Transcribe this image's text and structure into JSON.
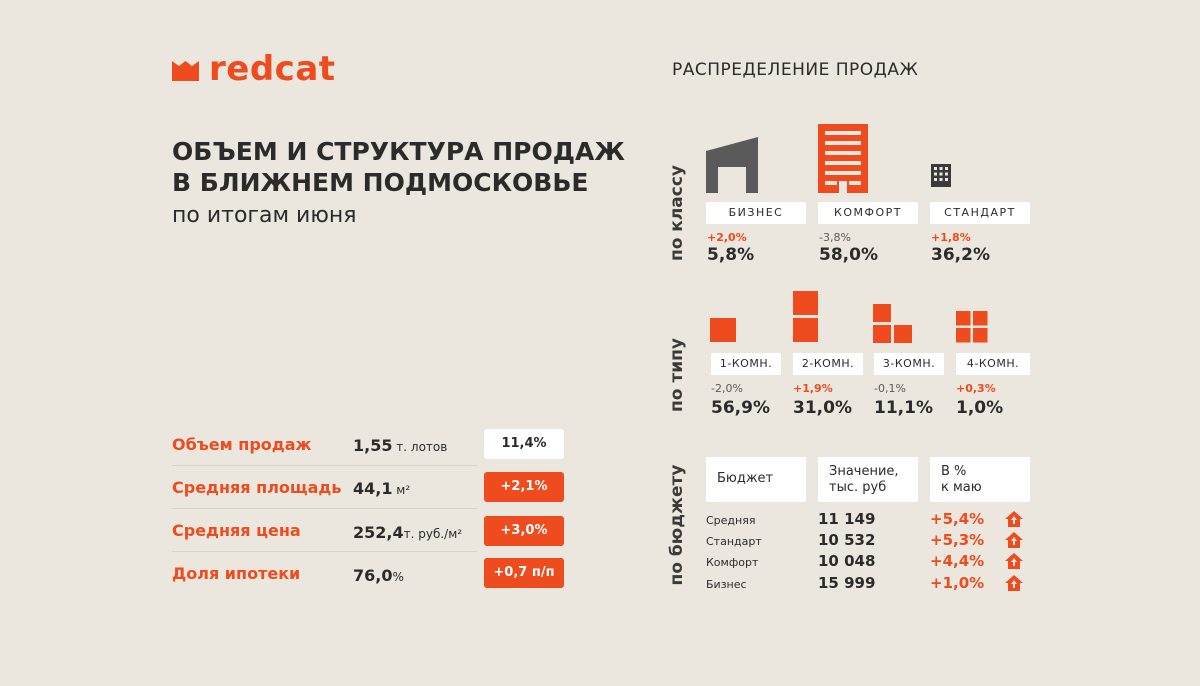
{
  "logo": {
    "text": "redcat"
  },
  "title": {
    "line1": "ОБЪЕМ И СТРУКТУРА ПРОДАЖ",
    "line2": "В БЛИЖНЕМ ПОДМОСКОВЬЕ",
    "subtitle": "по итогам июня"
  },
  "metrics": [
    {
      "label": "Объем продаж",
      "value": "1,55",
      "unit": " т. лотов",
      "badge": "11,4%",
      "badge_style": "white"
    },
    {
      "label": "Средняя площадь",
      "value": "44,1",
      "unit": " м²",
      "badge": "+2,1%",
      "badge_style": "red"
    },
    {
      "label": "Средняя цена",
      "value": "252,4",
      "unit": "т. руб./м²",
      "badge": "+3,0%",
      "badge_style": "red"
    },
    {
      "label": "Доля ипотеки",
      "value": "76,0",
      "unit": "%",
      "badge": "+0,7 п/п",
      "badge_style": "red"
    }
  ],
  "distribution": {
    "title": "РАСПРЕДЕЛЕНИЕ ПРОДАЖ",
    "by_class": {
      "label": "по классу",
      "items": [
        {
          "name": "БИЗНЕС",
          "delta": "+2,0%",
          "share": "5,8%",
          "trend": "up",
          "icon": "business-building-icon"
        },
        {
          "name": "КОМФОРТ",
          "delta": "-3,8%",
          "share": "58,0%",
          "trend": "down",
          "icon": "comfort-building-icon"
        },
        {
          "name": "СТАНДАРТ",
          "delta": "+1,8%",
          "share": "36,2%",
          "trend": "up",
          "icon": "standard-building-icon"
        }
      ]
    },
    "by_type": {
      "label": "по типу",
      "items": [
        {
          "name": "1-КОМН.",
          "delta": "-2,0%",
          "share": "56,9%",
          "trend": "down",
          "icon": "one-room-icon"
        },
        {
          "name": "2-КОМН.",
          "delta": "+1,9%",
          "share": "31,0%",
          "trend": "up",
          "icon": "two-room-icon"
        },
        {
          "name": "3-КОМН.",
          "delta": "-0,1%",
          "share": "11,1%",
          "trend": "down",
          "icon": "three-room-icon"
        },
        {
          "name": "4-КОМН.",
          "delta": "+0,3%",
          "share": "1,0%",
          "trend": "up",
          "icon": "four-room-icon"
        }
      ]
    },
    "by_budget": {
      "label": "по бюджету",
      "headers": [
        "Бюджет",
        "Значение,\nтыс. руб",
        "В %\nк маю"
      ],
      "rows": [
        {
          "name": "Средняя",
          "value": "11 149",
          "change": "+5,4%"
        },
        {
          "name": "Стандарт",
          "value": "10 532",
          "change": "+5,3%"
        },
        {
          "name": "Комфорт",
          "value": "10 048",
          "change": "+4,4%"
        },
        {
          "name": "Бизнес",
          "value": "15 999",
          "change": "+1,0%"
        }
      ]
    }
  },
  "colors": {
    "accent": "#EE4B1E",
    "background": "#ECE7DE",
    "dark_icon": "#5a5a5a",
    "text": "#2b2b2b"
  }
}
